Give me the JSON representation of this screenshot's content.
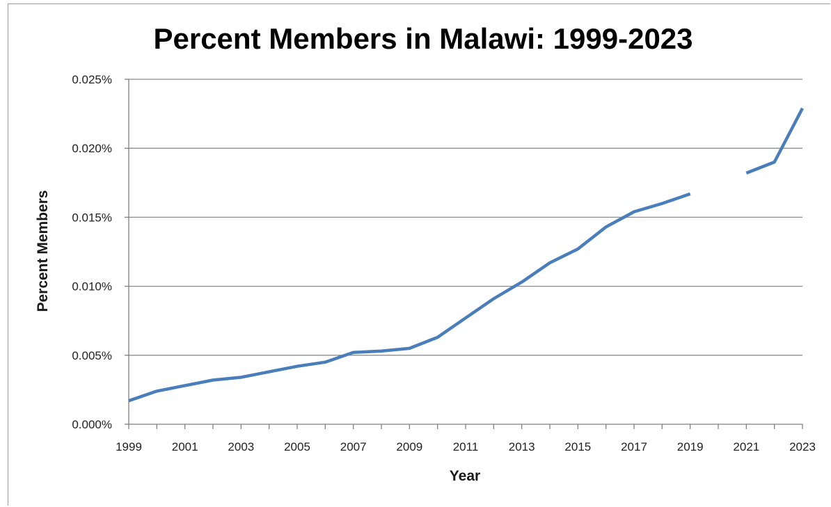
{
  "chart_data": {
    "type": "line",
    "title": "Percent Members in Malawi: 1999-2023",
    "xlabel": "Year",
    "ylabel": "Percent Members",
    "xlim": [
      1999,
      2023
    ],
    "ylim": [
      0,
      0.025
    ],
    "y_ticks": [
      0,
      0.005,
      0.01,
      0.015,
      0.02,
      0.025
    ],
    "y_tick_labels": [
      "0.000%",
      "0.005%",
      "0.010%",
      "0.015%",
      "0.020%",
      "0.025%"
    ],
    "x_ticks": [
      1999,
      2001,
      2003,
      2005,
      2007,
      2009,
      2011,
      2013,
      2015,
      2017,
      2019,
      2021,
      2023
    ],
    "x_tick_labels": [
      "1999",
      "2001",
      "2003",
      "2005",
      "2007",
      "2009",
      "2011",
      "2013",
      "2015",
      "2017",
      "2019",
      "2021",
      "2023"
    ],
    "grid": "horizontal",
    "color": "#4a7ebb",
    "series": [
      {
        "x": [
          1999,
          2000,
          2001,
          2002,
          2003,
          2004,
          2005,
          2006,
          2007,
          2008,
          2009,
          2010,
          2011,
          2012,
          2013,
          2014,
          2015,
          2016,
          2017,
          2018,
          2019,
          2020,
          2021,
          2022,
          2023
        ],
        "values": [
          0.0017,
          0.0024,
          0.0028,
          0.0032,
          0.0034,
          0.0038,
          0.0042,
          0.0045,
          0.0052,
          0.0053,
          0.0055,
          0.0063,
          0.0077,
          0.0091,
          0.0103,
          0.0117,
          0.0127,
          0.0143,
          0.0154,
          0.016,
          0.0167,
          null,
          0.0182,
          0.019,
          0.0229
        ]
      }
    ]
  }
}
